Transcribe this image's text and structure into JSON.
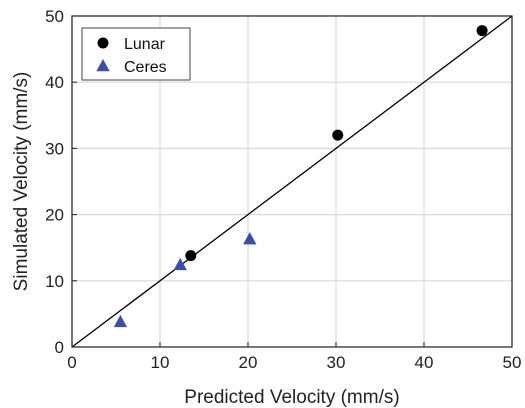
{
  "chart_data": {
    "type": "scatter",
    "title": "",
    "xlabel": "Predicted Velocity (mm/s)",
    "ylabel": "Simulated Velocity (mm/s)",
    "xlim": [
      0,
      50
    ],
    "ylim": [
      0,
      50
    ],
    "xticks": [
      "0",
      "10",
      "20",
      "30",
      "40",
      "50"
    ],
    "yticks": [
      "0",
      "10",
      "20",
      "30",
      "40",
      "50"
    ],
    "grid": true,
    "legend_position": "top-left",
    "reference_line": {
      "x": [
        0,
        50
      ],
      "y": [
        0,
        50
      ],
      "color": "#000000"
    },
    "series": [
      {
        "name": "Lunar",
        "marker": "circle",
        "color": "#000000",
        "points": [
          {
            "x": 13.5,
            "y": 13.8
          },
          {
            "x": 30.2,
            "y": 32.0
          },
          {
            "x": 46.6,
            "y": 47.8
          }
        ]
      },
      {
        "name": "Ceres",
        "marker": "triangle",
        "color": "#3a4fa8",
        "points": [
          {
            "x": 5.5,
            "y": 3.8
          },
          {
            "x": 12.3,
            "y": 12.4
          },
          {
            "x": 20.2,
            "y": 16.3
          }
        ]
      }
    ]
  }
}
